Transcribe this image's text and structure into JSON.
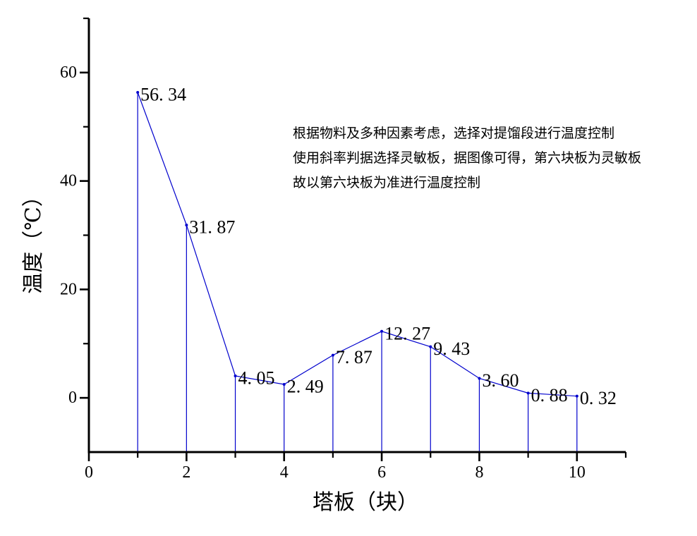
{
  "chart_data": {
    "type": "line",
    "title": "",
    "xlabel": "塔板（块）",
    "ylabel": "温度（℃）",
    "x": [
      1,
      2,
      3,
      4,
      5,
      6,
      7,
      8,
      9,
      10
    ],
    "values": [
      56.34,
      31.87,
      4.05,
      2.49,
      7.87,
      12.27,
      9.43,
      3.6,
      0.88,
      0.32
    ],
    "point_labels": [
      "56. 34",
      "31. 87",
      "4. 05",
      "2. 49",
      "7. 87",
      "12. 27",
      "9. 43",
      "3. 60",
      "0. 88",
      "0. 32"
    ],
    "xlim": [
      0,
      11
    ],
    "ylim": [
      -10,
      70
    ],
    "x_major_ticks": [
      0,
      2,
      4,
      6,
      8,
      10
    ],
    "x_minor_ticks": [
      1,
      3,
      5,
      7,
      9,
      11
    ],
    "y_major_ticks": [
      0,
      20,
      40,
      60
    ],
    "y_minor_ticks": [
      10,
      30,
      50,
      70
    ],
    "grid": false,
    "legend": "none",
    "line_color": "#0000CD",
    "axis_color": "#000000",
    "label_color": "#000000",
    "drop_lines_to_axis": true
  },
  "annotation": {
    "lines": [
      "根据物料及多种因素考虑，选择对提馏段进行温度控制",
      "使用斜率判据选择灵敏板，据图像可得，第六块板为灵敏板",
      "故以第六块板为准进行温度控制"
    ]
  }
}
